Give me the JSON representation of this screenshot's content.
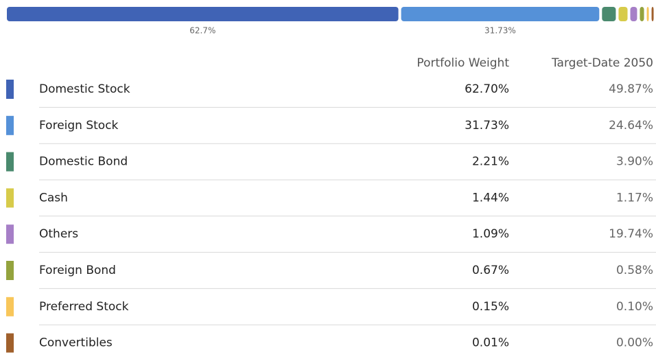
{
  "chart_data": {
    "type": "bar",
    "orientation": "horizontal",
    "stacked": true,
    "xlim": [
      0,
      100
    ],
    "series": [
      {
        "color": "#4063b5",
        "values": [
          62.7
        ],
        "value_labels": [
          "62.7%"
        ]
      },
      {
        "color": "#5591d8",
        "values": [
          31.73
        ],
        "value_labels": [
          "31.73%"
        ]
      },
      {
        "color": "#4a8a6e",
        "values": [
          2.21
        ]
      },
      {
        "color": "#d7cb4a",
        "values": [
          1.44
        ]
      },
      {
        "color": "#a67fc7",
        "values": [
          1.09
        ]
      },
      {
        "color": "#94a33e",
        "values": [
          0.67
        ]
      },
      {
        "color": "#f8c65a",
        "values": [
          0.15
        ]
      },
      {
        "color": "#a0602c",
        "values": [
          0.01
        ]
      }
    ]
  },
  "table": {
    "headers": [
      "Portfolio Weight",
      "Target-Date 2050"
    ],
    "rows": [
      [
        "Domestic Stock",
        "62.70%",
        "49.87%"
      ],
      [
        "Foreign Stock",
        "31.73%",
        "24.64%"
      ],
      [
        "Domestic Bond",
        "2.21%",
        "3.90%"
      ],
      [
        "Cash",
        "1.44%",
        "1.17%"
      ],
      [
        "Others",
        "1.09%",
        "19.74%"
      ],
      [
        "Foreign Bond",
        "0.67%",
        "0.58%"
      ],
      [
        "Preferred Stock",
        "0.15%",
        "0.10%"
      ],
      [
        "Convertibles",
        "0.01%",
        "0.00%"
      ]
    ]
  }
}
